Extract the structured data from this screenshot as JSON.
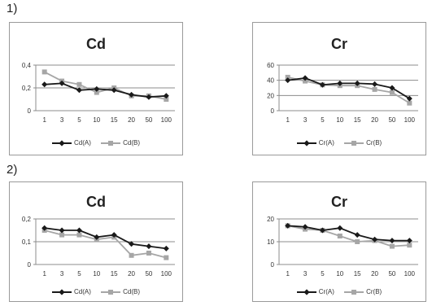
{
  "sections": [
    {
      "label": "1)"
    },
    {
      "label": "2)"
    }
  ],
  "colors": {
    "series_a": "#1a1a1a",
    "series_b": "#a6a6a6",
    "gridline": "#8c8c8c",
    "frame": "#9a9a9a"
  },
  "chart_data": [
    {
      "type": "line",
      "title": "Cd",
      "categories": [
        "1",
        "3",
        "5",
        "10",
        "15",
        "20",
        "50",
        "100"
      ],
      "ylim": [
        0,
        0.4
      ],
      "yticks": [
        0,
        0.2,
        0.4
      ],
      "ytick_labels": [
        "0",
        "0,2",
        "0,4"
      ],
      "grid": true,
      "legend_position": "bottom",
      "series": [
        {
          "name": "Cd(A)",
          "marker": "diamond",
          "values": [
            0.23,
            0.24,
            0.18,
            0.19,
            0.18,
            0.14,
            0.12,
            0.13
          ]
        },
        {
          "name": "Cd(B)",
          "marker": "square",
          "values": [
            0.34,
            0.26,
            0.23,
            0.16,
            0.2,
            0.13,
            0.13,
            0.1
          ]
        }
      ]
    },
    {
      "type": "line",
      "title": "Cr",
      "categories": [
        "1",
        "3",
        "5",
        "10",
        "15",
        "20",
        "50",
        "100"
      ],
      "ylim": [
        0,
        60
      ],
      "yticks": [
        0,
        20,
        40,
        60
      ],
      "ytick_labels": [
        "0",
        "20",
        "40",
        "60"
      ],
      "grid": true,
      "legend_position": "bottom",
      "series": [
        {
          "name": "Cr(A)",
          "marker": "diamond",
          "values": [
            40,
            43,
            34,
            36,
            36,
            35,
            30,
            16
          ]
        },
        {
          "name": "Cr(B)",
          "marker": "square",
          "values": [
            44,
            39,
            34,
            33,
            33,
            28,
            24,
            10
          ]
        }
      ]
    },
    {
      "type": "line",
      "title": "Cd",
      "categories": [
        "1",
        "3",
        "5",
        "10",
        "15",
        "20",
        "50",
        "100"
      ],
      "ylim": [
        0,
        0.2
      ],
      "yticks": [
        0,
        0.1,
        0.2
      ],
      "ytick_labels": [
        "0",
        "0,1",
        "0,2"
      ],
      "grid": true,
      "legend_position": "bottom",
      "series": [
        {
          "name": "Cd(A)",
          "marker": "diamond",
          "values": [
            0.16,
            0.15,
            0.15,
            0.12,
            0.13,
            0.09,
            0.08,
            0.07
          ]
        },
        {
          "name": "Cd(B)",
          "marker": "square",
          "values": [
            0.15,
            0.13,
            0.13,
            0.11,
            0.12,
            0.04,
            0.05,
            0.03
          ]
        }
      ]
    },
    {
      "type": "line",
      "title": "Cr",
      "categories": [
        "1",
        "3",
        "5",
        "10",
        "15",
        "20",
        "50",
        "100"
      ],
      "ylim": [
        0,
        20
      ],
      "yticks": [
        0,
        10,
        20
      ],
      "ytick_labels": [
        "0",
        "10",
        "20"
      ],
      "grid": true,
      "legend_position": "bottom",
      "series": [
        {
          "name": "Cr(A)",
          "marker": "diamond",
          "values": [
            17,
            16.5,
            15,
            16,
            13,
            11,
            10.5,
            10.5
          ]
        },
        {
          "name": "Cr(B)",
          "marker": "square",
          "values": [
            17,
            15.5,
            15,
            12.5,
            10,
            10.5,
            8,
            8.5
          ]
        }
      ]
    }
  ]
}
